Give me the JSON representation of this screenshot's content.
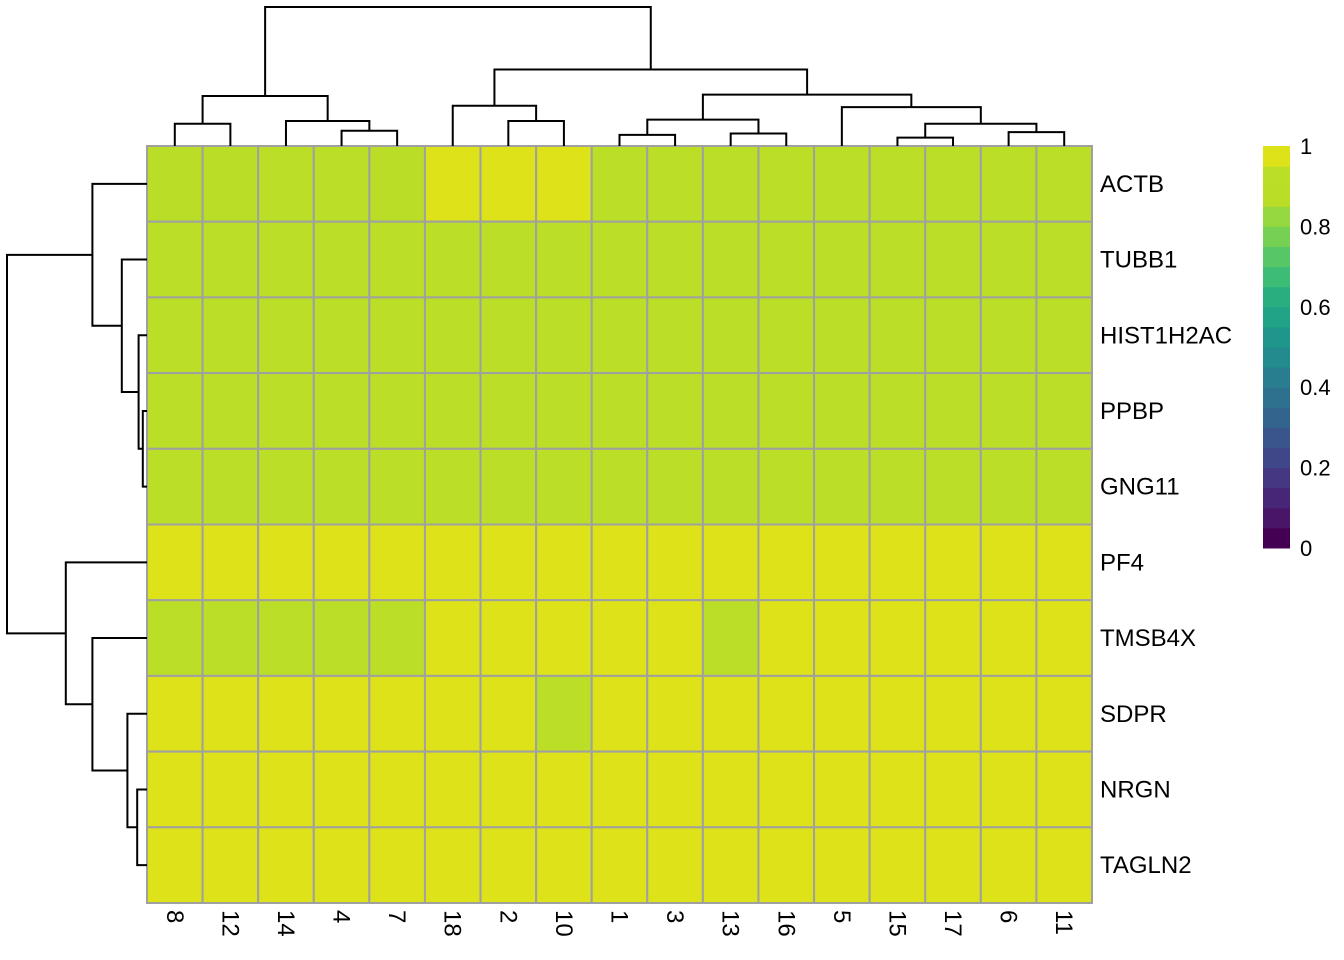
{
  "chart_data": {
    "type": "heatmap",
    "title": "",
    "rows": [
      "ACTB",
      "TUBB1",
      "HIST1H2AC",
      "PPBP",
      "GNG11",
      "PF4",
      "TMSB4X",
      "SDPR",
      "NRGN",
      "TAGLN2"
    ],
    "columns": [
      "8",
      "12",
      "14",
      "4",
      "7",
      "18",
      "2",
      "10",
      "1",
      "3",
      "13",
      "16",
      "5",
      "15",
      "17",
      "6",
      "11"
    ],
    "values": [
      [
        0.87,
        0.87,
        0.92,
        0.92,
        0.87,
        0.97,
        0.97,
        0.97,
        0.92,
        0.92,
        0.92,
        0.92,
        0.92,
        0.92,
        0.92,
        0.92,
        0.92
      ],
      [
        0.92,
        0.92,
        0.92,
        0.92,
        0.92,
        0.92,
        0.92,
        0.92,
        0.92,
        0.92,
        0.92,
        0.92,
        0.92,
        0.92,
        0.92,
        0.92,
        0.92
      ],
      [
        0.92,
        0.92,
        0.92,
        0.92,
        0.92,
        0.92,
        0.92,
        0.92,
        0.92,
        0.92,
        0.92,
        0.92,
        0.92,
        0.92,
        0.92,
        0.92,
        0.92
      ],
      [
        0.92,
        0.92,
        0.92,
        0.92,
        0.92,
        0.92,
        0.92,
        0.92,
        0.92,
        0.92,
        0.92,
        0.92,
        0.92,
        0.92,
        0.92,
        0.92,
        0.92
      ],
      [
        0.92,
        0.92,
        0.92,
        0.92,
        0.92,
        0.92,
        0.92,
        0.92,
        0.92,
        0.92,
        0.92,
        0.92,
        0.92,
        0.92,
        0.92,
        0.92,
        0.92
      ],
      [
        0.97,
        0.97,
        0.97,
        0.97,
        0.97,
        0.97,
        0.97,
        0.97,
        0.97,
        0.97,
        0.97,
        0.97,
        0.97,
        0.97,
        0.97,
        0.97,
        0.97
      ],
      [
        0.92,
        0.92,
        0.92,
        0.92,
        0.92,
        0.97,
        0.97,
        0.97,
        0.97,
        0.97,
        0.92,
        0.97,
        0.97,
        0.97,
        0.97,
        0.97,
        0.97
      ],
      [
        0.97,
        0.97,
        0.97,
        0.97,
        0.97,
        0.97,
        0.97,
        0.92,
        0.97,
        0.97,
        0.97,
        0.97,
        0.97,
        0.97,
        0.97,
        0.97,
        0.97
      ],
      [
        0.97,
        0.97,
        0.97,
        0.97,
        0.97,
        0.97,
        0.97,
        0.97,
        0.97,
        0.97,
        0.97,
        0.97,
        0.97,
        0.97,
        0.97,
        0.97,
        0.97
      ],
      [
        0.97,
        0.97,
        0.97,
        0.97,
        0.97,
        0.97,
        0.97,
        0.97,
        0.97,
        0.97,
        0.97,
        0.97,
        0.97,
        0.97,
        0.97,
        0.97,
        0.97
      ]
    ],
    "color_scale": {
      "name": "viridis",
      "range": [
        0,
        1
      ],
      "bins": 20,
      "colors": [
        "#440154",
        "#481568",
        "#482677",
        "#453781",
        "#3F4788",
        "#39558C",
        "#32648E",
        "#2D718E",
        "#287D8E",
        "#238A8D",
        "#1F968B",
        "#20A386",
        "#29AF7F",
        "#3CBC75",
        "#56C667",
        "#75D054",
        "#95D840",
        "#BADE28",
        "#BBDF27",
        "#DDE318"
      ],
      "legend_ticks": [
        "0",
        "0.2",
        "0.4",
        "0.6",
        "0.8",
        "1"
      ],
      "legend_tick_values": [
        0,
        0.2,
        0.4,
        0.6,
        0.8,
        1
      ]
    },
    "cell_border_color": "#A0A0A0",
    "legend_position": "right",
    "col_dendrogram": {
      "h": 1,
      "c": [
        {
          "h": 0.36,
          "c": [
            {
              "h": 0.16,
              "c": [
                0,
                1
              ]
            },
            {
              "h": 0.18,
              "c": [
                2,
                {
                  "h": 0.11,
                  "c": [
                    3,
                    4
                  ]
                }
              ]
            }
          ]
        },
        {
          "h": 0.55,
          "c": [
            {
              "h": 0.29,
              "c": [
                5,
                {
                  "h": 0.18,
                  "c": [
                    6,
                    7
                  ]
                }
              ]
            },
            {
              "h": 0.37,
              "c": [
                {
                  "h": 0.19,
                  "c": [
                    {
                      "h": 0.08,
                      "c": [
                        8,
                        9
                      ]
                    },
                    {
                      "h": 0.09,
                      "c": [
                        10,
                        11
                      ]
                    }
                  ]
                },
                {
                  "h": 0.28,
                  "c": [
                    12,
                    {
                      "h": 0.16,
                      "c": [
                        {
                          "h": 0.06,
                          "c": [
                            13,
                            14
                          ]
                        },
                        {
                          "h": 0.1,
                          "c": [
                            15,
                            16
                          ]
                        }
                      ]
                    }
                  ]
                }
              ]
            }
          ]
        }
      ]
    },
    "row_dendrogram": {
      "h": 1,
      "c": [
        {
          "h": 0.39,
          "c": [
            0,
            {
              "h": 0.18,
              "c": [
                1,
                {
                  "h": 0.06,
                  "c": [
                    2,
                    {
                      "h": 0.03,
                      "c": [
                        3,
                        4
                      ]
                    }
                  ]
                }
              ]
            }
          ]
        },
        {
          "h": 0.58,
          "c": [
            5,
            {
              "h": 0.39,
              "c": [
                6,
                {
                  "h": 0.14,
                  "c": [
                    7,
                    {
                      "h": 0.07,
                      "c": [
                        8,
                        9
                      ]
                    }
                  ]
                }
              ]
            }
          ]
        }
      ]
    }
  }
}
